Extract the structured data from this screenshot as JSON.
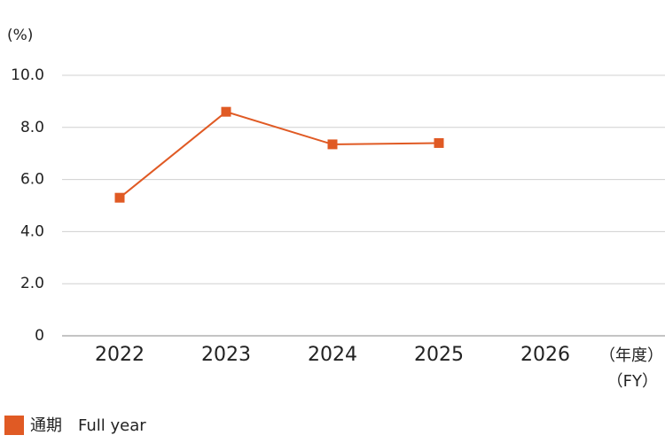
{
  "chart_data": {
    "type": "line",
    "y_label": "(%)",
    "x_label": "（年度）",
    "x_label_en": "（FY）",
    "categories": [
      "2022",
      "2023",
      "2024",
      "2025",
      "2026"
    ],
    "series": [
      {
        "name": "通期　Full year",
        "color": "#e05a24",
        "values": [
          5.3,
          8.6,
          7.35,
          7.4,
          null
        ]
      }
    ],
    "ylim": [
      0,
      10
    ],
    "yticks": [
      0,
      {
        "value": 2,
        "label": "2.0"
      },
      {
        "value": 4,
        "label": "4.0"
      },
      {
        "value": 6,
        "label": "6.0"
      },
      {
        "value": 8,
        "label": "8.0"
      },
      {
        "value": 10,
        "label": "10.0"
      }
    ],
    "grid": true
  }
}
